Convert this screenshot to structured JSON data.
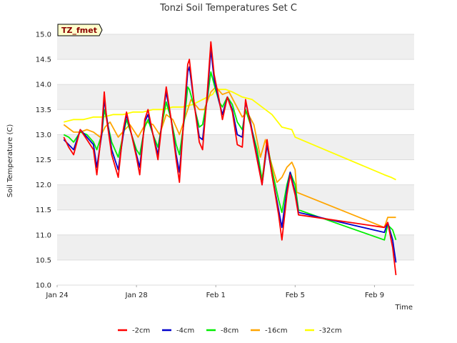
{
  "chart_data": {
    "type": "line",
    "title": "Tonzi Soil Temperatures Set C",
    "xlabel": "Time",
    "ylabel": "Soil Temperature (C)",
    "annotation": "TZ_fmet",
    "ylim": [
      10.0,
      15.0
    ],
    "yticks": [
      10.0,
      10.5,
      11.0,
      11.5,
      12.0,
      12.5,
      13.0,
      13.5,
      14.0,
      14.5,
      15.0
    ],
    "ytick_labels": [
      "10.0",
      "10.5",
      "11.0",
      "11.5",
      "12.0",
      "12.5",
      "13.0",
      "13.5",
      "14.0",
      "14.5",
      "15.0"
    ],
    "xlim": [
      "2000-01-24",
      "2000-02-11"
    ],
    "xticks": [
      "2000-01-24",
      "2000-01-28",
      "2000-02-01",
      "2000-02-05",
      "2000-02-09"
    ],
    "xtick_labels": [
      "Jan 24",
      "Jan 28",
      "Feb 1",
      "Feb 5",
      "Feb 9"
    ],
    "grid": "horizontal bands",
    "legend_position": "bottom-center",
    "series": [
      {
        "name": "-2cm",
        "color": "#ff0000",
        "points": [
          [
            "2000-01-24 08:00",
            12.95
          ],
          [
            "2000-01-24 14:00",
            12.75
          ],
          [
            "2000-01-24 20:00",
            12.6
          ],
          [
            "2000-01-25 04:00",
            13.1
          ],
          [
            "2000-01-25 12:00",
            12.9
          ],
          [
            "2000-01-25 20:00",
            12.7
          ],
          [
            "2000-01-26 00:00",
            12.2
          ],
          [
            "2000-01-26 06:00",
            13.1
          ],
          [
            "2000-01-26 09:00",
            13.85
          ],
          [
            "2000-01-26 12:00",
            13.3
          ],
          [
            "2000-01-26 18:00",
            12.6
          ],
          [
            "2000-01-27 02:00",
            12.15
          ],
          [
            "2000-01-27 08:00",
            13.1
          ],
          [
            "2000-01-27 12:00",
            13.45
          ],
          [
            "2000-01-27 18:00",
            13.0
          ],
          [
            "2000-01-28 00:00",
            12.55
          ],
          [
            "2000-01-28 04:00",
            12.2
          ],
          [
            "2000-01-28 10:00",
            13.3
          ],
          [
            "2000-01-28 14:00",
            13.5
          ],
          [
            "2000-01-28 20:00",
            13.0
          ],
          [
            "2000-01-29 02:00",
            12.5
          ],
          [
            "2000-01-29 08:00",
            13.4
          ],
          [
            "2000-01-29 12:00",
            13.95
          ],
          [
            "2000-01-29 18:00",
            13.3
          ],
          [
            "2000-01-30 00:00",
            12.5
          ],
          [
            "2000-01-30 04:00",
            12.05
          ],
          [
            "2000-01-30 10:00",
            13.5
          ],
          [
            "2000-01-30 14:00",
            14.4
          ],
          [
            "2000-01-30 16:00",
            14.5
          ],
          [
            "2000-01-30 22:00",
            13.6
          ],
          [
            "2000-01-31 04:00",
            12.85
          ],
          [
            "2000-01-31 08:00",
            12.7
          ],
          [
            "2000-01-31 14:00",
            13.9
          ],
          [
            "2000-01-31 18:00",
            14.85
          ],
          [
            "2000-01-31 22:00",
            14.2
          ],
          [
            "2000-02-01 04:00",
            13.7
          ],
          [
            "2000-02-01 08:00",
            13.3
          ],
          [
            "2000-02-01 14:00",
            13.75
          ],
          [
            "2000-02-01 20:00",
            13.45
          ],
          [
            "2000-02-02 02:00",
            12.8
          ],
          [
            "2000-02-02 08:00",
            12.75
          ],
          [
            "2000-02-02 12:00",
            13.7
          ],
          [
            "2000-02-02 18:00",
            13.2
          ],
          [
            "2000-02-03 02:00",
            12.5
          ],
          [
            "2000-02-03 08:00",
            12.0
          ],
          [
            "2000-02-03 14:00",
            12.9
          ],
          [
            "2000-02-03 20:00",
            12.2
          ],
          [
            "2000-02-04 04:00",
            11.4
          ],
          [
            "2000-02-04 08:00",
            10.9
          ],
          [
            "2000-02-04 14:00",
            11.8
          ],
          [
            "2000-02-04 18:00",
            12.2
          ],
          [
            "2000-02-05 00:00",
            11.8
          ],
          [
            "2000-02-05 04:00",
            11.4
          ],
          [
            "2000-02-09 12:00",
            11.15
          ],
          [
            "2000-02-09 16:00",
            11.25
          ],
          [
            "2000-02-09 22:00",
            10.75
          ],
          [
            "2000-02-10 02:00",
            10.2
          ]
        ]
      },
      {
        "name": "-4cm",
        "color": "#0000cc",
        "points": [
          [
            "2000-01-24 08:00",
            12.9
          ],
          [
            "2000-01-24 14:00",
            12.8
          ],
          [
            "2000-01-24 20:00",
            12.7
          ],
          [
            "2000-01-25 04:00",
            13.1
          ],
          [
            "2000-01-25 12:00",
            12.95
          ],
          [
            "2000-01-25 20:00",
            12.8
          ],
          [
            "2000-01-26 00:00",
            12.35
          ],
          [
            "2000-01-26 06:00",
            13.0
          ],
          [
            "2000-01-26 09:00",
            13.7
          ],
          [
            "2000-01-26 12:00",
            13.35
          ],
          [
            "2000-01-26 18:00",
            12.7
          ],
          [
            "2000-01-27 02:00",
            12.3
          ],
          [
            "2000-01-27 08:00",
            13.0
          ],
          [
            "2000-01-27 12:00",
            13.4
          ],
          [
            "2000-01-27 18:00",
            13.0
          ],
          [
            "2000-01-28 00:00",
            12.6
          ],
          [
            "2000-01-28 04:00",
            12.35
          ],
          [
            "2000-01-28 10:00",
            13.25
          ],
          [
            "2000-01-28 14:00",
            13.4
          ],
          [
            "2000-01-28 20:00",
            13.0
          ],
          [
            "2000-01-29 02:00",
            12.6
          ],
          [
            "2000-01-29 08:00",
            13.4
          ],
          [
            "2000-01-29 12:00",
            13.85
          ],
          [
            "2000-01-29 18:00",
            13.3
          ],
          [
            "2000-01-30 00:00",
            12.6
          ],
          [
            "2000-01-30 04:00",
            12.25
          ],
          [
            "2000-01-30 10:00",
            13.4
          ],
          [
            "2000-01-30 14:00",
            14.25
          ],
          [
            "2000-01-30 16:00",
            14.35
          ],
          [
            "2000-01-30 22:00",
            13.6
          ],
          [
            "2000-01-31 04:00",
            12.95
          ],
          [
            "2000-01-31 08:00",
            12.9
          ],
          [
            "2000-01-31 14:00",
            13.8
          ],
          [
            "2000-01-31 18:00",
            14.7
          ],
          [
            "2000-01-31 22:00",
            14.1
          ],
          [
            "2000-02-01 04:00",
            13.65
          ],
          [
            "2000-02-01 08:00",
            13.4
          ],
          [
            "2000-02-01 14:00",
            13.75
          ],
          [
            "2000-02-01 20:00",
            13.5
          ],
          [
            "2000-02-02 02:00",
            13.0
          ],
          [
            "2000-02-02 08:00",
            12.95
          ],
          [
            "2000-02-02 12:00",
            13.65
          ],
          [
            "2000-02-02 18:00",
            13.25
          ],
          [
            "2000-02-03 02:00",
            12.55
          ],
          [
            "2000-02-03 08:00",
            12.0
          ],
          [
            "2000-02-03 14:00",
            12.8
          ],
          [
            "2000-02-03 20:00",
            12.2
          ],
          [
            "2000-02-04 04:00",
            11.5
          ],
          [
            "2000-02-04 08:00",
            11.15
          ],
          [
            "2000-02-04 14:00",
            11.9
          ],
          [
            "2000-02-04 18:00",
            12.25
          ],
          [
            "2000-02-05 00:00",
            11.85
          ],
          [
            "2000-02-05 04:00",
            11.45
          ],
          [
            "2000-02-09 12:00",
            11.05
          ],
          [
            "2000-02-09 16:00",
            11.25
          ],
          [
            "2000-02-09 22:00",
            10.9
          ],
          [
            "2000-02-10 02:00",
            10.45
          ]
        ]
      },
      {
        "name": "-8cm",
        "color": "#00ee00",
        "points": [
          [
            "2000-01-24 08:00",
            13.0
          ],
          [
            "2000-01-24 14:00",
            12.95
          ],
          [
            "2000-01-24 20:00",
            12.85
          ],
          [
            "2000-01-25 04:00",
            13.05
          ],
          [
            "2000-01-25 12:00",
            13.0
          ],
          [
            "2000-01-25 20:00",
            12.85
          ],
          [
            "2000-01-26 00:00",
            12.7
          ],
          [
            "2000-01-26 06:00",
            13.0
          ],
          [
            "2000-01-26 09:00",
            13.5
          ],
          [
            "2000-01-26 12:00",
            13.3
          ],
          [
            "2000-01-26 18:00",
            12.85
          ],
          [
            "2000-01-27 02:00",
            12.55
          ],
          [
            "2000-01-27 08:00",
            13.0
          ],
          [
            "2000-01-27 12:00",
            13.3
          ],
          [
            "2000-01-27 18:00",
            13.0
          ],
          [
            "2000-01-28 00:00",
            12.7
          ],
          [
            "2000-01-28 04:00",
            12.6
          ],
          [
            "2000-01-28 10:00",
            13.15
          ],
          [
            "2000-01-28 14:00",
            13.3
          ],
          [
            "2000-01-28 20:00",
            13.0
          ],
          [
            "2000-01-29 02:00",
            12.75
          ],
          [
            "2000-01-29 08:00",
            13.3
          ],
          [
            "2000-01-29 12:00",
            13.65
          ],
          [
            "2000-01-29 18:00",
            13.3
          ],
          [
            "2000-01-30 00:00",
            12.8
          ],
          [
            "2000-01-30 04:00",
            12.6
          ],
          [
            "2000-01-30 10:00",
            13.3
          ],
          [
            "2000-01-30 14:00",
            13.95
          ],
          [
            "2000-01-30 16:00",
            13.9
          ],
          [
            "2000-01-30 22:00",
            13.55
          ],
          [
            "2000-01-31 04:00",
            13.15
          ],
          [
            "2000-01-31 08:00",
            13.2
          ],
          [
            "2000-01-31 14:00",
            13.75
          ],
          [
            "2000-01-31 18:00",
            14.25
          ],
          [
            "2000-01-31 22:00",
            14.0
          ],
          [
            "2000-02-01 04:00",
            13.65
          ],
          [
            "2000-02-01 08:00",
            13.55
          ],
          [
            "2000-02-01 14:00",
            13.75
          ],
          [
            "2000-02-01 20:00",
            13.6
          ],
          [
            "2000-02-02 02:00",
            13.25
          ],
          [
            "2000-02-02 08:00",
            13.1
          ],
          [
            "2000-02-02 12:00",
            13.5
          ],
          [
            "2000-02-02 18:00",
            13.2
          ],
          [
            "2000-02-03 02:00",
            12.7
          ],
          [
            "2000-02-03 08:00",
            12.1
          ],
          [
            "2000-02-03 14:00",
            12.85
          ],
          [
            "2000-02-03 20:00",
            12.3
          ],
          [
            "2000-02-04 04:00",
            11.7
          ],
          [
            "2000-02-04 08:00",
            11.45
          ],
          [
            "2000-02-04 14:00",
            12.0
          ],
          [
            "2000-02-04 18:00",
            12.25
          ],
          [
            "2000-02-05 00:00",
            12.0
          ],
          [
            "2000-02-05 04:00",
            11.5
          ],
          [
            "2000-02-09 12:00",
            10.9
          ],
          [
            "2000-02-09 16:00",
            11.2
          ],
          [
            "2000-02-09 22:00",
            11.1
          ],
          [
            "2000-02-10 02:00",
            10.9
          ]
        ]
      },
      {
        "name": "-16cm",
        "color": "#ffa500",
        "points": [
          [
            "2000-01-24 08:00",
            13.2
          ],
          [
            "2000-01-24 20:00",
            13.05
          ],
          [
            "2000-01-25 04:00",
            13.05
          ],
          [
            "2000-01-25 12:00",
            13.1
          ],
          [
            "2000-01-25 20:00",
            13.05
          ],
          [
            "2000-01-26 04:00",
            12.95
          ],
          [
            "2000-01-26 10:00",
            13.15
          ],
          [
            "2000-01-26 16:00",
            13.25
          ],
          [
            "2000-01-27 02:00",
            12.95
          ],
          [
            "2000-01-27 10:00",
            13.1
          ],
          [
            "2000-01-27 16:00",
            13.2
          ],
          [
            "2000-01-28 02:00",
            12.95
          ],
          [
            "2000-01-28 12:00",
            13.25
          ],
          [
            "2000-01-28 20:00",
            13.2
          ],
          [
            "2000-01-29 04:00",
            13.0
          ],
          [
            "2000-01-29 12:00",
            13.4
          ],
          [
            "2000-01-29 20:00",
            13.3
          ],
          [
            "2000-01-30 04:00",
            13.0
          ],
          [
            "2000-01-30 12:00",
            13.4
          ],
          [
            "2000-01-30 18:00",
            13.7
          ],
          [
            "2000-01-31 04:00",
            13.5
          ],
          [
            "2000-01-31 10:00",
            13.5
          ],
          [
            "2000-01-31 18:00",
            13.85
          ],
          [
            "2000-02-01 00:00",
            13.95
          ],
          [
            "2000-02-01 08:00",
            13.8
          ],
          [
            "2000-02-01 16:00",
            13.85
          ],
          [
            "2000-02-02 00:00",
            13.6
          ],
          [
            "2000-02-02 08:00",
            13.35
          ],
          [
            "2000-02-02 14:00",
            13.45
          ],
          [
            "2000-02-02 22:00",
            13.2
          ],
          [
            "2000-02-03 06:00",
            12.55
          ],
          [
            "2000-02-03 12:00",
            12.9
          ],
          [
            "2000-02-03 18:00",
            12.5
          ],
          [
            "2000-02-04 02:00",
            12.05
          ],
          [
            "2000-02-04 08:00",
            12.15
          ],
          [
            "2000-02-04 14:00",
            12.35
          ],
          [
            "2000-02-04 20:00",
            12.45
          ],
          [
            "2000-02-05 00:00",
            12.3
          ],
          [
            "2000-02-05 02:00",
            11.85
          ],
          [
            "2000-02-09 12:00",
            11.15
          ],
          [
            "2000-02-09 16:00",
            11.35
          ],
          [
            "2000-02-09 22:00",
            11.35
          ],
          [
            "2000-02-10 02:00",
            11.35
          ]
        ]
      },
      {
        "name": "-32cm",
        "color": "#ffff00",
        "points": [
          [
            "2000-01-24 08:00",
            13.25
          ],
          [
            "2000-01-24 20:00",
            13.3
          ],
          [
            "2000-01-25 08:00",
            13.3
          ],
          [
            "2000-01-25 20:00",
            13.35
          ],
          [
            "2000-01-26 08:00",
            13.35
          ],
          [
            "2000-01-26 20:00",
            13.4
          ],
          [
            "2000-01-27 08:00",
            13.4
          ],
          [
            "2000-01-27 20:00",
            13.45
          ],
          [
            "2000-01-28 08:00",
            13.45
          ],
          [
            "2000-01-28 20:00",
            13.5
          ],
          [
            "2000-01-29 08:00",
            13.5
          ],
          [
            "2000-01-29 20:00",
            13.55
          ],
          [
            "2000-01-30 08:00",
            13.55
          ],
          [
            "2000-01-30 20:00",
            13.6
          ],
          [
            "2000-01-31 08:00",
            13.7
          ],
          [
            "2000-01-31 20:00",
            13.8
          ],
          [
            "2000-02-01 00:00",
            13.9
          ],
          [
            "2000-02-01 12:00",
            13.9
          ],
          [
            "2000-02-01 20:00",
            13.85
          ],
          [
            "2000-02-02 08:00",
            13.75
          ],
          [
            "2000-02-02 20:00",
            13.7
          ],
          [
            "2000-02-03 08:00",
            13.55
          ],
          [
            "2000-02-03 20:00",
            13.4
          ],
          [
            "2000-02-04 08:00",
            13.15
          ],
          [
            "2000-02-04 20:00",
            13.1
          ],
          [
            "2000-02-05 00:00",
            12.95
          ],
          [
            "2000-02-09 12:00",
            12.2
          ],
          [
            "2000-02-09 20:00",
            12.15
          ],
          [
            "2000-02-10 02:00",
            12.1
          ]
        ]
      }
    ]
  }
}
